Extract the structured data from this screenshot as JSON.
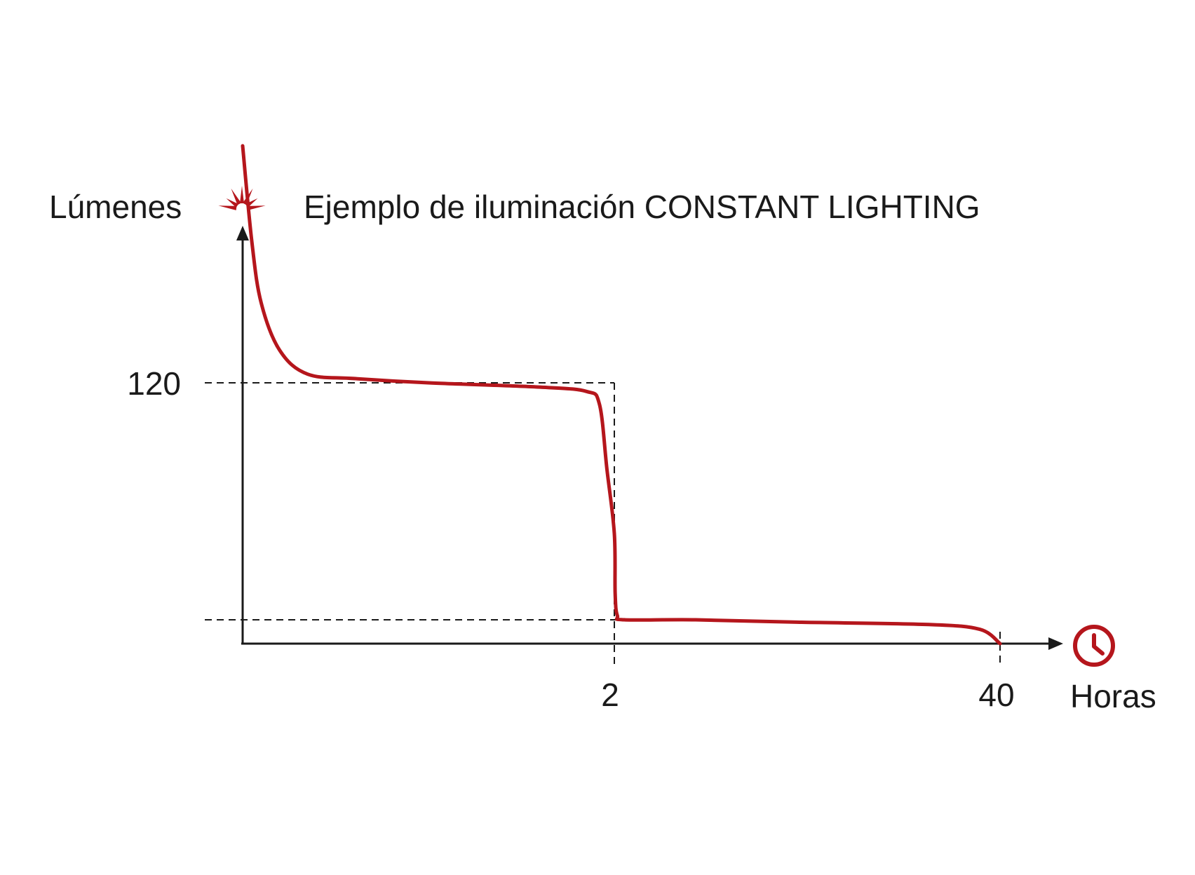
{
  "chart_data": {
    "type": "line",
    "title": "Ejemplo de iluminación CONSTANT LIGHTING",
    "ylabel": "Lúmenes",
    "xlabel": "Horas",
    "y_ticks": [
      {
        "value": 120,
        "label": "120"
      }
    ],
    "x_ticks": [
      {
        "value": 2,
        "label": "2"
      },
      {
        "value": 40,
        "label": "40"
      }
    ],
    "series": [
      {
        "color": "#b5161c",
        "points": [
          {
            "x": 0.0,
            "y": 230
          },
          {
            "x": 0.05,
            "y": 185
          },
          {
            "x": 0.1,
            "y": 157
          },
          {
            "x": 0.2,
            "y": 135
          },
          {
            "x": 0.35,
            "y": 124
          },
          {
            "x": 0.6,
            "y": 122
          },
          {
            "x": 1.0,
            "y": 120
          },
          {
            "x": 1.6,
            "y": 118
          },
          {
            "x": 1.85,
            "y": 116
          },
          {
            "x": 1.92,
            "y": 110
          },
          {
            "x": 1.96,
            "y": 80
          },
          {
            "x": 2.0,
            "y": 50
          },
          {
            "x": 2.08,
            "y": 22
          },
          {
            "x": 2.3,
            "y": 12
          },
          {
            "x": 3.0,
            "y": 10
          },
          {
            "x": 10,
            "y": 10
          },
          {
            "x": 20,
            "y": 9
          },
          {
            "x": 33,
            "y": 8
          },
          {
            "x": 38,
            "y": 6
          },
          {
            "x": 40,
            "y": 0
          }
        ]
      }
    ],
    "reference_lines": [
      {
        "axis": "y",
        "value": 120,
        "style": "dashed"
      },
      {
        "axis": "y",
        "value": 10,
        "style": "dashed"
      },
      {
        "axis": "x",
        "value": 2,
        "style": "dashed"
      },
      {
        "axis": "x",
        "value": 40,
        "style": "dashed"
      }
    ],
    "icons": {
      "y_axis": "sun-icon",
      "x_axis": "clock-icon"
    },
    "accent_color": "#b5161c",
    "grid": false,
    "legend": "none"
  }
}
